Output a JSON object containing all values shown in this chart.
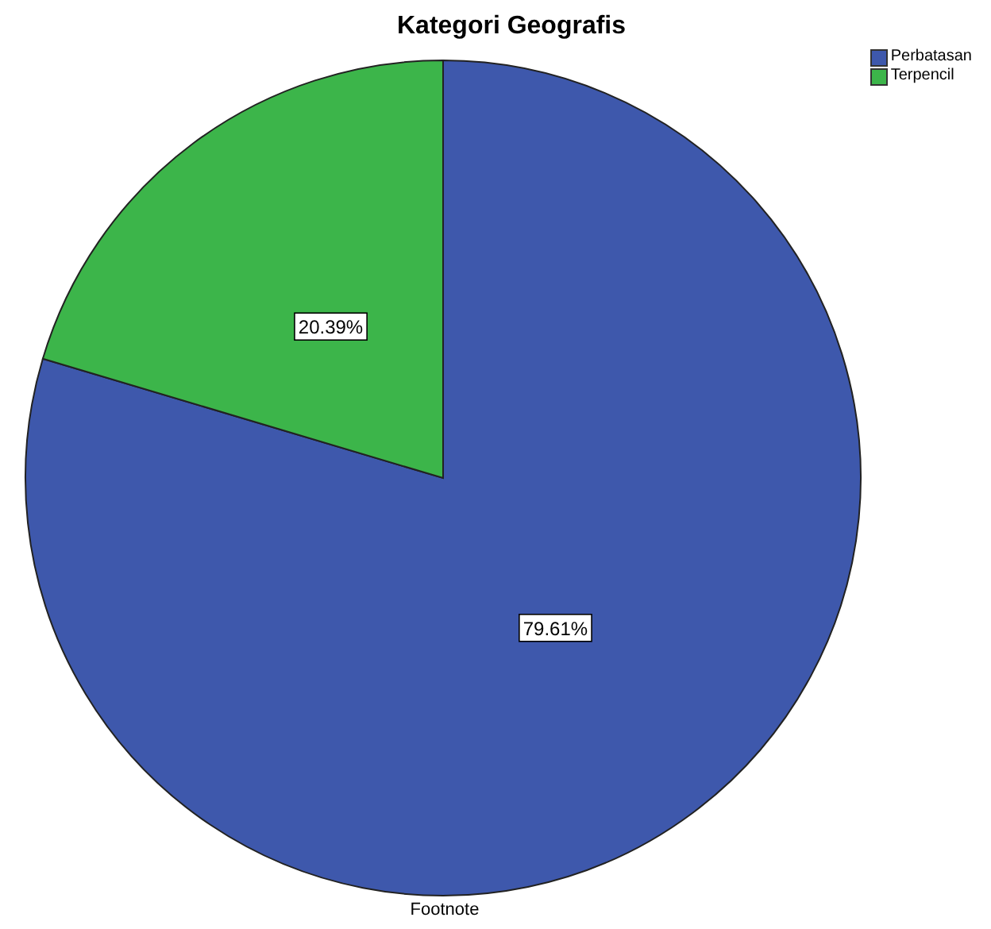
{
  "chart_data": {
    "type": "pie",
    "title": "Kategori Geografis",
    "categories": [
      "Perbatasan",
      "Terpencil"
    ],
    "values": [
      79.61,
      20.39
    ],
    "value_labels": [
      "79.61%",
      "20.39%"
    ],
    "colors": [
      "#3e58ac",
      "#3cb54a"
    ],
    "legend": "top right",
    "annotations": [
      "Footnote"
    ]
  }
}
